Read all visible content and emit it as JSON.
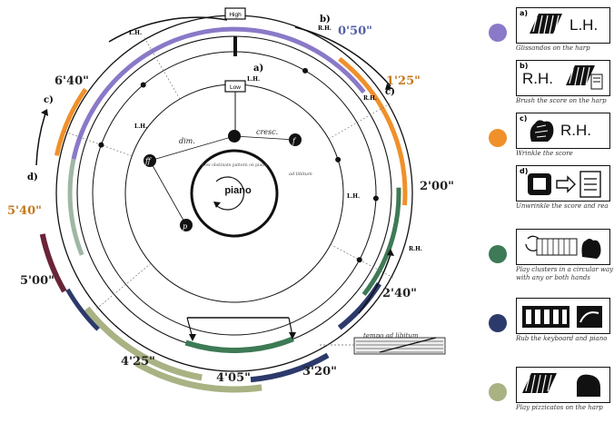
{
  "center": {
    "label": "piano",
    "tiny_text": "Low obstinate pattern on piano"
  },
  "markers": {
    "high": "High",
    "low": "Low"
  },
  "section_letters": {
    "a": "a)",
    "b": "b)",
    "c_right": "c)",
    "c_left": "c)",
    "d": "d)"
  },
  "hands": {
    "lh_top": "L.H.",
    "rh_top": "R.H.",
    "lh_a": "L.H.",
    "rh_c": "R.H.",
    "lh_inner": "L.H.",
    "lh_right": "L.H.",
    "rh_right": "R.H."
  },
  "dynamics": {
    "dim": "dim.",
    "cresc": "cresc.",
    "ad_libitum": "ad libitum",
    "tempo": "tempo ad libitum"
  },
  "times": {
    "t0050": "0'50\"",
    "t0125": "1'25\"",
    "t0200": "2'00\"",
    "t0240": "2'40\"",
    "t0320": "3'20\"",
    "t0405": "4'05\"",
    "t0425": "4'25\"",
    "t0500": "5'00\"",
    "t0540": "5'40\"",
    "t0640": "6'40\""
  },
  "colors": {
    "lavender": "#8a79c8",
    "orange": "#f0902a",
    "green": "#3d7a55",
    "navy": "#2c3a6b",
    "sage": "#a9b283",
    "maroon": "#6a2438",
    "pale_green": "#9fb7a4"
  },
  "legend": [
    {
      "tag": "a)",
      "icon": "harp-glissando-icon",
      "text": "L.H.",
      "caption": "Glissandos on the harp",
      "color": "#8a79c8"
    },
    {
      "tag": "b)",
      "icon": "brush-harp-icon",
      "text": "R.H.",
      "caption": "Brush the score on the harp",
      "color": "#8a79c8"
    },
    {
      "tag": "c)",
      "icon": "wrinkle-hand-icon",
      "text": "R.H.",
      "caption": "Wrinkle the score",
      "color": "#f0902a"
    },
    {
      "tag": "d)",
      "icon": "unwrinkle-score-icon",
      "text": "",
      "caption": "Unwrinkle the score and rea",
      "color": "#f0902a"
    },
    {
      "tag": "",
      "icon": "circular-cluster-icon",
      "text": "",
      "caption": "Play clusters in a circular way with any or both hands",
      "color": "#3d7a55"
    },
    {
      "tag": "",
      "icon": "rub-keyboard-icon",
      "text": "",
      "caption": "Rub the keyboard and piano",
      "color": "#2c3a6b"
    },
    {
      "tag": "",
      "icon": "harp-pizzicato-icon",
      "text": "",
      "caption": "Play pizzicatos on the harp",
      "color": "#a9b283"
    }
  ]
}
